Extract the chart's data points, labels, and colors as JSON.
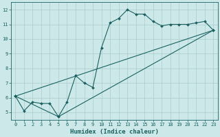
{
  "xlabel": "Humidex (Indice chaleur)",
  "bg_color": "#cce8e8",
  "grid_color": "#aacccc",
  "line_color": "#1a6060",
  "xlim": [
    -0.5,
    23.5
  ],
  "ylim": [
    4.5,
    12.5
  ],
  "xticks": [
    0,
    1,
    2,
    3,
    4,
    5,
    6,
    7,
    8,
    9,
    10,
    11,
    12,
    13,
    14,
    15,
    16,
    17,
    18,
    19,
    20,
    21,
    22,
    23
  ],
  "yticks": [
    5,
    6,
    7,
    8,
    9,
    10,
    11,
    12
  ],
  "line1_x": [
    0,
    1,
    2,
    3,
    4,
    5,
    6,
    7,
    8,
    9,
    10,
    11,
    12,
    13,
    14,
    15,
    16,
    17,
    18,
    19,
    20,
    21,
    22,
    23
  ],
  "line1_y": [
    6.1,
    5.1,
    5.7,
    5.6,
    5.6,
    4.7,
    5.7,
    7.5,
    7.0,
    6.7,
    9.4,
    11.1,
    11.4,
    12.0,
    11.7,
    11.7,
    11.2,
    10.9,
    11.0,
    11.0,
    11.0,
    11.1,
    11.2,
    10.6
  ],
  "line2_x": [
    0,
    23
  ],
  "line2_y": [
    6.1,
    10.6
  ],
  "line3_x": [
    0,
    5,
    23
  ],
  "line3_y": [
    6.1,
    4.7,
    10.6
  ],
  "marker_size": 2.0,
  "line_width": 0.8,
  "tick_fontsize": 5.0,
  "xlabel_fontsize": 6.5
}
